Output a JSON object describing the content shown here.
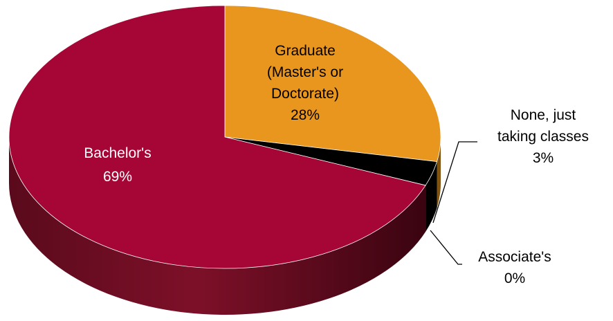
{
  "chart_data": {
    "type": "pie",
    "title": "",
    "three_d": true,
    "legend": "none",
    "slices": [
      {
        "label": "Graduate (Master's or Doctorate)",
        "value": 28,
        "display": [
          "Graduate",
          "(Master's or",
          "Doctorate)",
          "28%"
        ],
        "color": "#E8961E",
        "label_color": "#000000"
      },
      {
        "label": "None, just taking classes",
        "value": 3,
        "display": [
          "None, just",
          "taking classes",
          "3%"
        ],
        "color": "#000000",
        "label_color": "#000000"
      },
      {
        "label": "Associate's",
        "value": 0,
        "display": [
          "Associate's",
          "0%"
        ],
        "color": "#A50636",
        "label_color": "#000000"
      },
      {
        "label": "Bachelor's",
        "value": 69,
        "display": [
          "Bachelor's",
          "69%"
        ],
        "color": "#A50636",
        "label_color": "#ffffff"
      }
    ]
  }
}
